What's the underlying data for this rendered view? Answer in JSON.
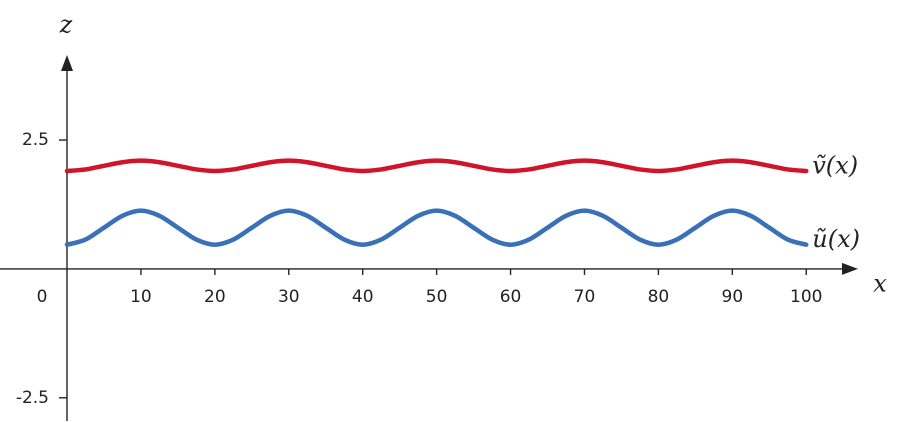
{
  "chart_data": {
    "type": "line",
    "x_label": "x",
    "y_label": "z",
    "x": [
      0,
      2.5,
      5,
      7.5,
      10,
      12.5,
      15,
      17.5,
      20,
      22.5,
      25,
      27.5,
      30,
      32.5,
      35,
      37.5,
      40,
      42.5,
      45,
      47.5,
      50,
      52.5,
      55,
      57.5,
      60,
      62.5,
      65,
      67.5,
      70,
      72.5,
      75,
      77.5,
      80,
      82.5,
      85,
      87.5,
      90,
      92.5,
      95,
      97.5,
      100
    ],
    "series": [
      {
        "name": "ṽ(x)",
        "color": "#d0152b",
        "values": [
          1.9,
          1.93,
          2.0,
          2.07,
          2.1,
          2.07,
          2.0,
          1.93,
          1.9,
          1.93,
          2.0,
          2.07,
          2.1,
          2.07,
          2.0,
          1.93,
          1.9,
          1.93,
          2.0,
          2.07,
          2.1,
          2.07,
          2.0,
          1.93,
          1.9,
          1.93,
          2.0,
          2.07,
          2.1,
          2.07,
          2.0,
          1.93,
          1.9,
          1.93,
          2.0,
          2.07,
          2.1,
          2.07,
          2.0,
          1.93,
          1.9
        ]
      },
      {
        "name": "ũ(x)",
        "color": "#3a70b6",
        "values": [
          0.47,
          0.57,
          0.8,
          1.03,
          1.13,
          1.03,
          0.8,
          0.57,
          0.47,
          0.57,
          0.8,
          1.03,
          1.13,
          1.03,
          0.8,
          0.57,
          0.47,
          0.57,
          0.8,
          1.03,
          1.13,
          1.03,
          0.8,
          0.57,
          0.47,
          0.57,
          0.8,
          1.03,
          1.13,
          1.03,
          0.8,
          0.57,
          0.47,
          0.57,
          0.8,
          1.03,
          1.13,
          1.03,
          0.8,
          0.57,
          0.47
        ]
      }
    ],
    "xlim": [
      0,
      107
    ],
    "ylim": [
      -2.95,
      4.15
    ],
    "xticks": [
      0,
      10,
      20,
      30,
      40,
      50,
      60,
      70,
      80,
      90,
      100
    ],
    "yticks": [
      -2.5,
      2.5
    ],
    "grid": false
  }
}
